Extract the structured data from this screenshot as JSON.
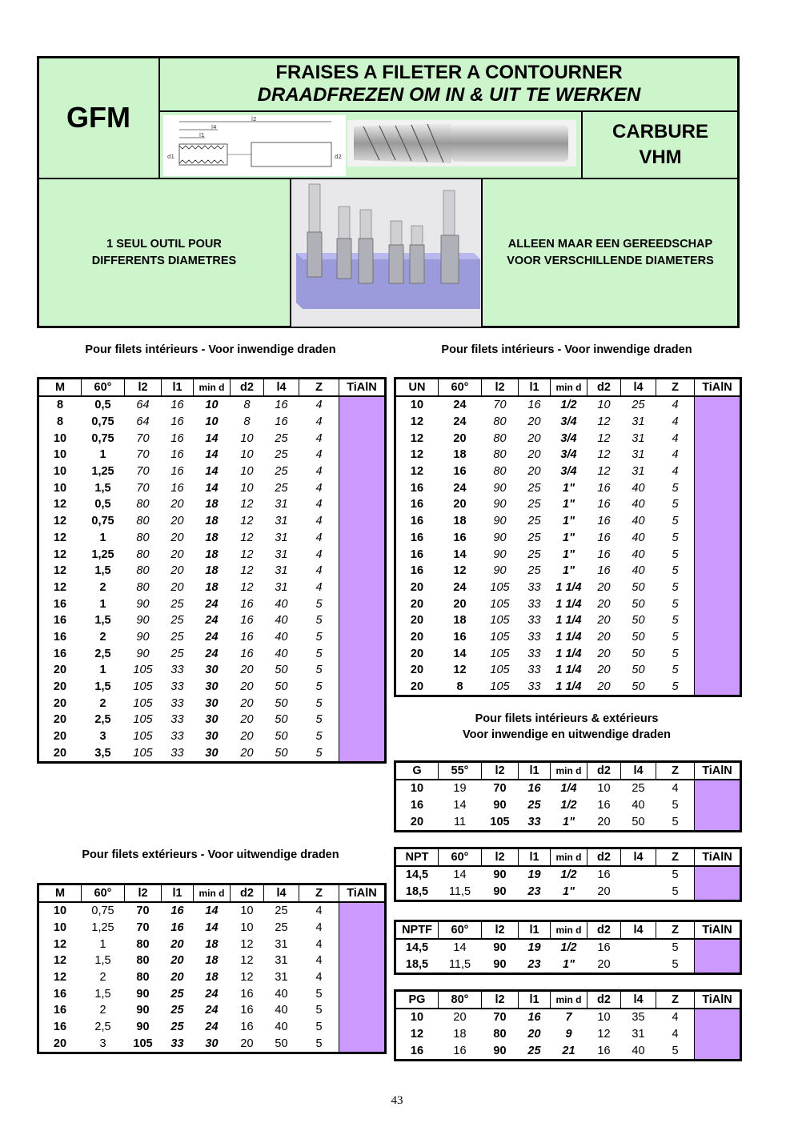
{
  "header": {
    "code": "GFM",
    "title_fr": "FRAISES A FILETER A CONTOURNER",
    "title_nl": "DRAADFREZEN OM IN & UIT TE WERKEN",
    "material_1": "CARBURE",
    "material_2": "VHM",
    "desc_fr_1": "1 SEUL OUTIL POUR",
    "desc_fr_2": "DIFFERENTS DIAMETRES",
    "desc_nl_1": "ALLEEN MAAR EEN GEREEDSCHAP",
    "desc_nl_2": "VOOR VERSCHILLENDE DIAMETERS",
    "drawing_labels": [
      "l2",
      "l4",
      "l1",
      "d1",
      "d2"
    ]
  },
  "captions": {
    "int_left": "Pour filets intérieurs - Voor inwendige draden",
    "int_right": "Pour filets intérieurs - Voor inwendige draden",
    "both_1": "Pour filets intérieurs & extérieurs",
    "both_2": "Voor inwendige  en uitwendige draden",
    "ext_left": "Pour filets extérieurs - Voor uitwendige draden"
  },
  "colors": {
    "header_bg": "#ccf5cc",
    "tialn_col": "#cc99ff"
  },
  "tables": [
    {
      "id": "metric-int",
      "headers": [
        "M",
        "60°",
        "l2",
        "l1",
        "min d",
        "d2",
        "l4",
        "Z",
        "TiAlN"
      ],
      "rows": [
        [
          "8",
          "0,5",
          "64",
          "16",
          "10",
          "8",
          "16",
          "4"
        ],
        [
          "8",
          "0,75",
          "64",
          "16",
          "10",
          "8",
          "16",
          "4"
        ],
        [
          "10",
          "0,75",
          "70",
          "16",
          "14",
          "10",
          "25",
          "4"
        ],
        [
          "10",
          "1",
          "70",
          "16",
          "14",
          "10",
          "25",
          "4"
        ],
        [
          "10",
          "1,25",
          "70",
          "16",
          "14",
          "10",
          "25",
          "4"
        ],
        [
          "10",
          "1,5",
          "70",
          "16",
          "14",
          "10",
          "25",
          "4"
        ],
        [
          "12",
          "0,5",
          "80",
          "20",
          "18",
          "12",
          "31",
          "4"
        ],
        [
          "12",
          "0,75",
          "80",
          "20",
          "18",
          "12",
          "31",
          "4"
        ],
        [
          "12",
          "1",
          "80",
          "20",
          "18",
          "12",
          "31",
          "4"
        ],
        [
          "12",
          "1,25",
          "80",
          "20",
          "18",
          "12",
          "31",
          "4"
        ],
        [
          "12",
          "1,5",
          "80",
          "20",
          "18",
          "12",
          "31",
          "4"
        ],
        [
          "12",
          "2",
          "80",
          "20",
          "18",
          "12",
          "31",
          "4"
        ],
        [
          "16",
          "1",
          "90",
          "25",
          "24",
          "16",
          "40",
          "5"
        ],
        [
          "16",
          "1,5",
          "90",
          "25",
          "24",
          "16",
          "40",
          "5"
        ],
        [
          "16",
          "2",
          "90",
          "25",
          "24",
          "16",
          "40",
          "5"
        ],
        [
          "16",
          "2,5",
          "90",
          "25",
          "24",
          "16",
          "40",
          "5"
        ],
        [
          "20",
          "1",
          "105",
          "33",
          "30",
          "20",
          "50",
          "5"
        ],
        [
          "20",
          "1,5",
          "105",
          "33",
          "30",
          "20",
          "50",
          "5"
        ],
        [
          "20",
          "2",
          "105",
          "33",
          "30",
          "20",
          "50",
          "5"
        ],
        [
          "20",
          "2,5",
          "105",
          "33",
          "30",
          "20",
          "50",
          "5"
        ],
        [
          "20",
          "3",
          "105",
          "33",
          "30",
          "20",
          "50",
          "5"
        ],
        [
          "20",
          "3,5",
          "105",
          "33",
          "30",
          "20",
          "50",
          "5"
        ]
      ]
    },
    {
      "id": "un-int",
      "headers": [
        "UN",
        "60°",
        "l2",
        "l1",
        "min d",
        "d2",
        "l4",
        "Z",
        "TiAlN"
      ],
      "rows": [
        [
          "10",
          "24",
          "70",
          "16",
          "1/2",
          "10",
          "25",
          "4"
        ],
        [
          "12",
          "24",
          "80",
          "20",
          "3/4",
          "12",
          "31",
          "4"
        ],
        [
          "12",
          "20",
          "80",
          "20",
          "3/4",
          "12",
          "31",
          "4"
        ],
        [
          "12",
          "18",
          "80",
          "20",
          "3/4",
          "12",
          "31",
          "4"
        ],
        [
          "12",
          "16",
          "80",
          "20",
          "3/4",
          "12",
          "31",
          "4"
        ],
        [
          "16",
          "24",
          "90",
          "25",
          "1\"",
          "16",
          "40",
          "5"
        ],
        [
          "16",
          "20",
          "90",
          "25",
          "1\"",
          "16",
          "40",
          "5"
        ],
        [
          "16",
          "18",
          "90",
          "25",
          "1\"",
          "16",
          "40",
          "5"
        ],
        [
          "16",
          "16",
          "90",
          "25",
          "1\"",
          "16",
          "40",
          "5"
        ],
        [
          "16",
          "14",
          "90",
          "25",
          "1\"",
          "16",
          "40",
          "5"
        ],
        [
          "16",
          "12",
          "90",
          "25",
          "1\"",
          "16",
          "40",
          "5"
        ],
        [
          "20",
          "24",
          "105",
          "33",
          "1 1/4",
          "20",
          "50",
          "5"
        ],
        [
          "20",
          "20",
          "105",
          "33",
          "1 1/4",
          "20",
          "50",
          "5"
        ],
        [
          "20",
          "18",
          "105",
          "33",
          "1 1/4",
          "20",
          "50",
          "5"
        ],
        [
          "20",
          "16",
          "105",
          "33",
          "1 1/4",
          "20",
          "50",
          "5"
        ],
        [
          "20",
          "14",
          "105",
          "33",
          "1 1/4",
          "20",
          "50",
          "5"
        ],
        [
          "20",
          "12",
          "105",
          "33",
          "1 1/4",
          "20",
          "50",
          "5"
        ],
        [
          "20",
          "8",
          "105",
          "33",
          "1 1/4",
          "20",
          "50",
          "5"
        ]
      ]
    },
    {
      "id": "g",
      "headers": [
        "G",
        "55°",
        "l2",
        "l1",
        "min d",
        "d2",
        "l4",
        "Z",
        "TiAlN"
      ],
      "rows": [
        [
          "10",
          "19",
          "70",
          "16",
          "1/4",
          "10",
          "25",
          "4"
        ],
        [
          "16",
          "14",
          "90",
          "25",
          "1/2",
          "16",
          "40",
          "5"
        ],
        [
          "20",
          "11",
          "105",
          "33",
          "1\"",
          "20",
          "50",
          "5"
        ]
      ]
    },
    {
      "id": "npt",
      "headers": [
        "NPT",
        "60°",
        "l2",
        "l1",
        "min d",
        "d2",
        "l4",
        "Z",
        "TiAlN"
      ],
      "rows": [
        [
          "14,5",
          "14",
          "90",
          "19",
          "1/2",
          "16",
          "",
          "5"
        ],
        [
          "18,5",
          "11,5",
          "90",
          "23",
          "1\"",
          "20",
          "",
          "5"
        ]
      ]
    },
    {
      "id": "nptf",
      "headers": [
        "NPTF",
        "60°",
        "l2",
        "l1",
        "min d",
        "d2",
        "l4",
        "Z",
        "TiAlN"
      ],
      "rows": [
        [
          "14,5",
          "14",
          "90",
          "19",
          "1/2",
          "16",
          "",
          "5"
        ],
        [
          "18,5",
          "11,5",
          "90",
          "23",
          "1\"",
          "20",
          "",
          "5"
        ]
      ]
    },
    {
      "id": "pg",
      "headers": [
        "PG",
        "80°",
        "l2",
        "l1",
        "min d",
        "d2",
        "l4",
        "Z",
        "TiAlN"
      ],
      "rows": [
        [
          "10",
          "20",
          "70",
          "16",
          "7",
          "10",
          "35",
          "4"
        ],
        [
          "12",
          "18",
          "80",
          "20",
          "9",
          "12",
          "31",
          "4"
        ],
        [
          "16",
          "16",
          "90",
          "25",
          "21",
          "16",
          "40",
          "5"
        ]
      ]
    },
    {
      "id": "metric-ext",
      "headers": [
        "M",
        "60°",
        "l2",
        "l1",
        "min d",
        "d2",
        "l4",
        "Z",
        "TiAlN"
      ],
      "rows": [
        [
          "10",
          "0,75",
          "70",
          "16",
          "14",
          "10",
          "25",
          "4"
        ],
        [
          "10",
          "1,25",
          "70",
          "16",
          "14",
          "10",
          "25",
          "4"
        ],
        [
          "12",
          "1",
          "80",
          "20",
          "18",
          "12",
          "31",
          "4"
        ],
        [
          "12",
          "1,5",
          "80",
          "20",
          "18",
          "12",
          "31",
          "4"
        ],
        [
          "12",
          "2",
          "80",
          "20",
          "18",
          "12",
          "31",
          "4"
        ],
        [
          "16",
          "1,5",
          "90",
          "25",
          "24",
          "16",
          "40",
          "5"
        ],
        [
          "16",
          "2",
          "90",
          "25",
          "24",
          "16",
          "40",
          "5"
        ],
        [
          "16",
          "2,5",
          "90",
          "25",
          "24",
          "16",
          "40",
          "5"
        ],
        [
          "20",
          "3",
          "105",
          "33",
          "30",
          "20",
          "50",
          "5"
        ]
      ]
    }
  ],
  "page_number": "43"
}
